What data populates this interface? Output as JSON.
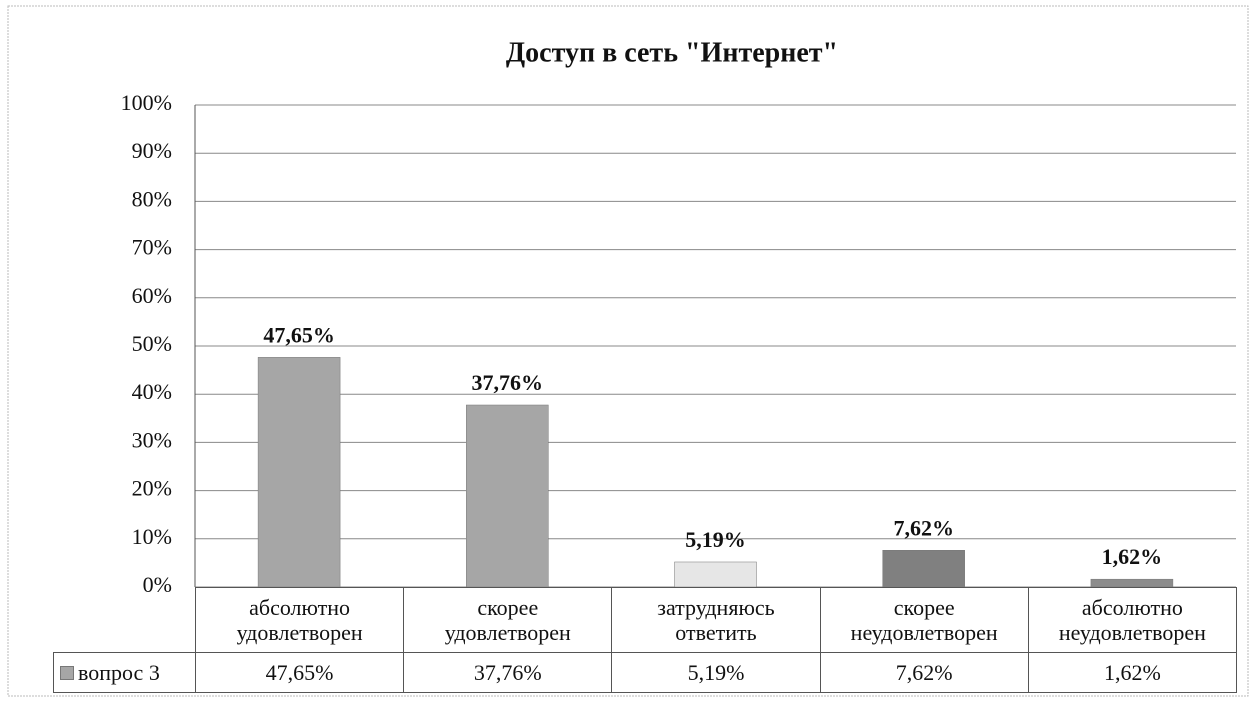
{
  "chart_data": {
    "type": "bar",
    "title": "Доступ в сеть \"Интернет\"",
    "categories": [
      "абсолютно удовлетворен",
      "скорее удовлетворен",
      "затрудняюсь ответить",
      "скорее неудовлетворен",
      "абсолютно неудовлетворен"
    ],
    "series": [
      {
        "name": "вопрос 3",
        "color": "#a6a6a6",
        "point_colors": [
          "#a6a6a6",
          "#a6a6a6",
          "#e6e6e6",
          "#808080",
          "#8c8c8c"
        ],
        "values": [
          47.65,
          37.76,
          5.19,
          7.62,
          1.62
        ],
        "value_labels": [
          "47,65%",
          "37,76%",
          "5,19%",
          "7,62%",
          "1,62%"
        ]
      }
    ],
    "ylim": [
      0,
      100
    ],
    "yticks": [
      {
        "value": 0,
        "label": "0%"
      },
      {
        "value": 10,
        "label": "10%"
      },
      {
        "value": 20,
        "label": "20%"
      },
      {
        "value": 30,
        "label": "30%"
      },
      {
        "value": 40,
        "label": "40%"
      },
      {
        "value": 50,
        "label": "50%"
      },
      {
        "value": 60,
        "label": "60%"
      },
      {
        "value": 70,
        "label": "70%"
      },
      {
        "value": 80,
        "label": "80%"
      },
      {
        "value": 90,
        "label": "90%"
      },
      {
        "value": 100,
        "label": "100%"
      }
    ],
    "grid": true,
    "data_table": true
  }
}
